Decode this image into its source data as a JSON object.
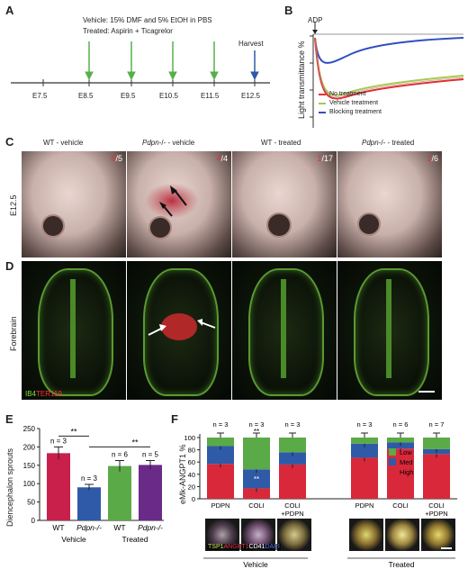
{
  "panel_labels": {
    "a": "A",
    "b": "B",
    "c": "C",
    "d": "D",
    "e": "E",
    "f": "F"
  },
  "panelA": {
    "vehicle_text": "Vehicle: 15% DMF and 5% EtOH in PBS",
    "treated_text": "Treated: Aspirin + Ticagrelor",
    "harvest_label": "Harvest",
    "ticks": [
      "E7.5",
      "E8.5",
      "E9.5",
      "E10.5",
      "E11.5",
      "E12.5"
    ]
  },
  "panelB": {
    "agonist_label": "ADP",
    "ylabel": "Light transmittance %",
    "legend": [
      {
        "name": "No treatment",
        "color": "#e03030"
      },
      {
        "name": "Vehicle treatment",
        "color": "#a8c850"
      },
      {
        "name": "Blocking treatment",
        "color": "#3050c0"
      }
    ]
  },
  "panelC": {
    "row_label": "E12.5",
    "columns": [
      {
        "title": "WT - vehicle",
        "italic": "",
        "suffix": "",
        "count_red": "0",
        "count_white": "/5"
      },
      {
        "title": "",
        "italic": "Pdpn",
        "suffix": "-/- - vehicle",
        "count_red": "4",
        "count_white": "/4"
      },
      {
        "title": "WT - treated",
        "italic": "",
        "suffix": "",
        "count_red": "1",
        "count_white": "/17"
      },
      {
        "title": "",
        "italic": "Pdpn",
        "suffix": "-/- - treated",
        "count_red": "1",
        "count_white": "/6"
      }
    ]
  },
  "panelD": {
    "row_label": "Forebrain",
    "stain_green": "IB4",
    "stain_red": "TER119"
  },
  "panelE": {
    "chart_data": {
      "type": "bar",
      "ylabel": "Diencephalon sprouts",
      "ylim": [
        0,
        250
      ],
      "yticks": [
        "0",
        "50",
        "100",
        "150",
        "200",
        "250"
      ],
      "categories": [
        "WT",
        "Pdpn-/-",
        "WT",
        "Pdpn-/-"
      ],
      "cat_italic": [
        false,
        true,
        false,
        true
      ],
      "groups": [
        "Vehicle",
        "Treated"
      ],
      "values": [
        183,
        90,
        148,
        151
      ],
      "errors": [
        17,
        8,
        15,
        12
      ],
      "n_labels": [
        "n = 3",
        "n = 3",
        "n = 6",
        "n = 5"
      ],
      "colors": [
        "#c8204a",
        "#2f5aa8",
        "#5aaa48",
        "#6a2a88"
      ],
      "sig": [
        "**",
        "**"
      ]
    }
  },
  "panelF": {
    "chart_data": {
      "type": "bar",
      "ylabel": "eMk-ANGPT1 %",
      "ylim": [
        0,
        100
      ],
      "yticks": [
        "0",
        "20",
        "40",
        "60",
        "80",
        "100"
      ],
      "categories": [
        "PDPN",
        "COLI",
        "COLI +PDPN",
        "PDPN",
        "COLI",
        "COLI +PDPN"
      ],
      "groups": [
        "Vehicle",
        "Treated"
      ],
      "n_labels": [
        "n = 3",
        "n = 3",
        "n = 3",
        "n = 3",
        "n = 6",
        "n = 7"
      ],
      "series": [
        {
          "name": "High",
          "color": "#d9283a",
          "values": [
            57,
            17,
            56,
            67,
            82,
            73
          ]
        },
        {
          "name": "Med",
          "color": "#2f5aa8",
          "values": [
            29,
            31,
            20,
            23,
            10,
            8
          ]
        },
        {
          "name": "Low",
          "color": "#5aaa48",
          "values": [
            14,
            52,
            24,
            10,
            8,
            19
          ]
        }
      ],
      "sig": [
        "**",
        "**"
      ],
      "stain_labels": [
        {
          "text": "TSP1",
          "color": "#c8e050"
        },
        {
          "text": "ANGPT1",
          "color": "#e03040"
        },
        {
          "text": "CD41",
          "color": "#ffffff"
        },
        {
          "text": "DAPI",
          "color": "#5070e0"
        }
      ]
    }
  }
}
